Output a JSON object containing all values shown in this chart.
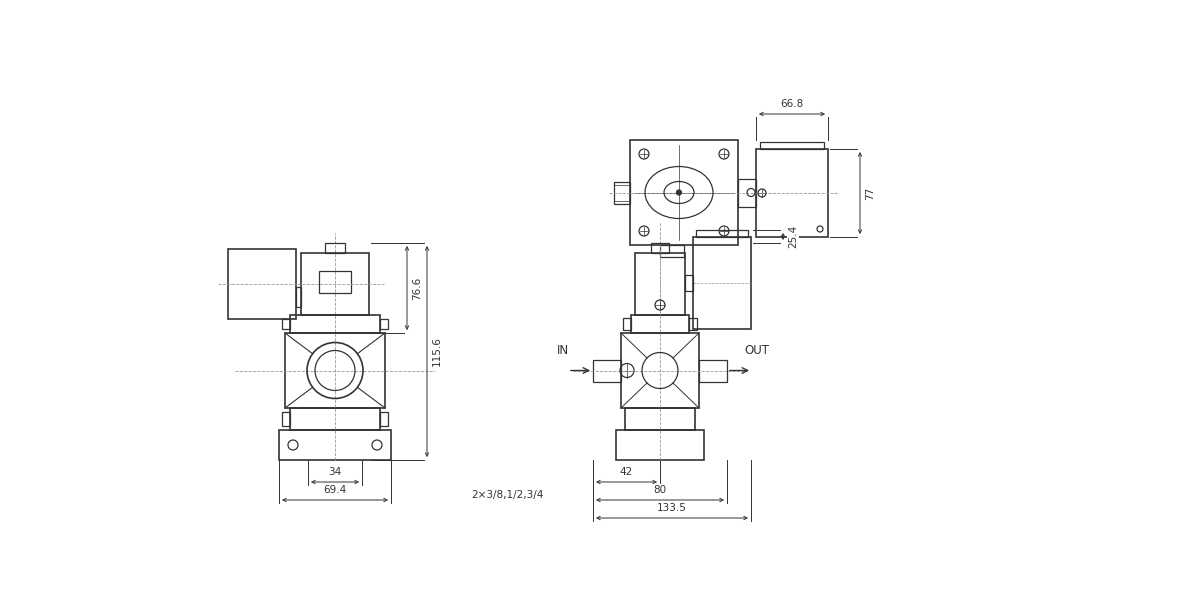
{
  "bg_color": "#ffffff",
  "line_color": "#333333",
  "dim_color": "#333333",
  "cl_color": "#999999",
  "labels": {
    "in": "IN",
    "out": "OUT",
    "dim_66_8": "66.8",
    "dim_77": "77",
    "dim_76_6": "76.6",
    "dim_115_6": "115.6",
    "dim_34": "34",
    "dim_69_4": "69.4",
    "dim_pipe": "2×3/8,1/2,3/4",
    "dim_42": "42",
    "dim_80": "80",
    "dim_133_5": "133.5",
    "dim_25_4": "25.4"
  }
}
